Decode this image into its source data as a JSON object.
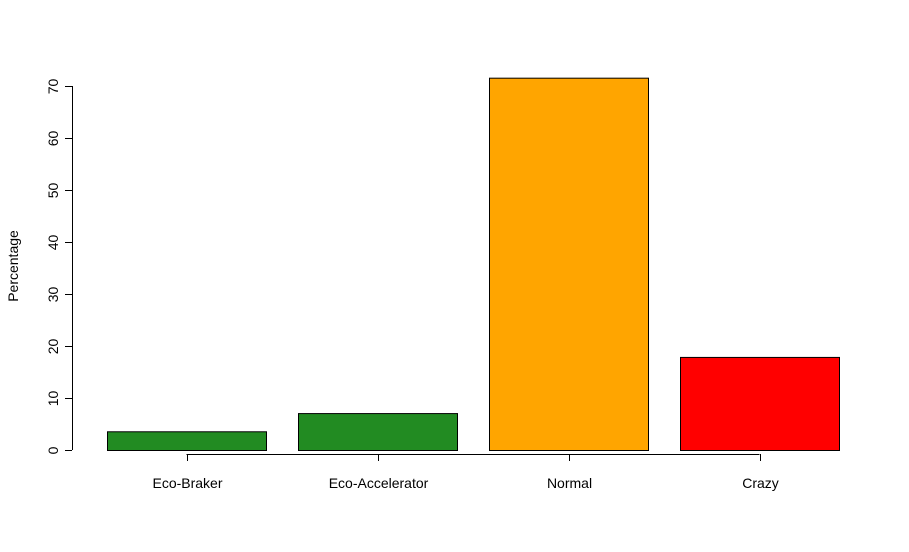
{
  "chart_data": {
    "type": "bar",
    "title": "",
    "xlabel": "",
    "ylabel": "Percentage",
    "categories": [
      "Eco-Braker",
      "Eco-Accelerator",
      "Normal",
      "Crazy"
    ],
    "values": [
      3.6,
      7.1,
      71.6,
      17.9
    ],
    "colors": [
      "#228B22",
      "#228B22",
      "#FFA500",
      "#FF0000"
    ],
    "ylim": [
      0,
      70
    ],
    "yticks": [
      "0",
      "10",
      "20",
      "30",
      "40",
      "50",
      "60",
      "70"
    ],
    "grid": false,
    "legend": "none"
  }
}
